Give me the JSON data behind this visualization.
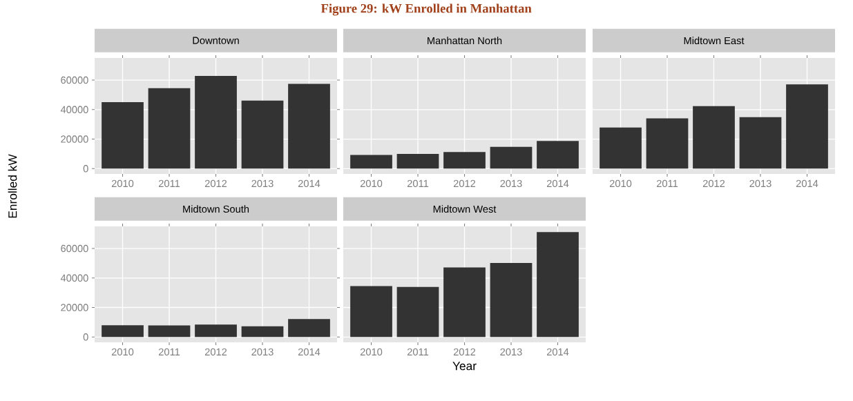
{
  "chart_data": [
    {
      "type": "bar",
      "title": "Downtown",
      "categories": [
        "2010",
        "2011",
        "2012",
        "2013",
        "2014"
      ],
      "values": [
        45000,
        54500,
        62800,
        46100,
        57400
      ],
      "color": "#333333",
      "ylim": [
        -3600,
        75000
      ],
      "yticks": [
        0,
        20000,
        40000,
        60000
      ],
      "grid": true,
      "annotations": [
        "Figure 29: kW Enrolled in Manhattan"
      ]
    },
    {
      "type": "bar",
      "title": "Manhattan North",
      "categories": [
        "2010",
        "2011",
        "2012",
        "2013",
        "2014"
      ],
      "values": [
        9300,
        10000,
        11300,
        14700,
        18700
      ],
      "color": "#333333",
      "ylim": [
        -3600,
        75000
      ],
      "yticks": [
        0,
        20000,
        40000,
        60000
      ],
      "grid": true,
      "tick_labels": "x"
    },
    {
      "type": "bar",
      "title": "Midtown East",
      "categories": [
        "2010",
        "2011",
        "2012",
        "2013",
        "2014"
      ],
      "values": [
        27800,
        34000,
        42400,
        34900,
        57100
      ],
      "color": "#333333",
      "ylim": [
        -3600,
        75000
      ],
      "yticks": [
        0,
        20000,
        40000,
        60000
      ],
      "grid": true,
      "tick_labels": "x"
    },
    {
      "type": "bar",
      "title": "Midtown South",
      "ylabel": "Enrolled kW",
      "categories": [
        "2010",
        "2011",
        "2012",
        "2013",
        "2014"
      ],
      "values": [
        8000,
        7800,
        8400,
        7300,
        12200
      ],
      "color": "#333333",
      "ylim": [
        -3600,
        75000
      ],
      "yticks": [
        0,
        20000,
        40000,
        60000
      ],
      "grid": true
    },
    {
      "type": "bar",
      "title": "Midtown West",
      "xlabel": "Year",
      "categories": [
        "2010",
        "2011",
        "2012",
        "2013",
        "2014"
      ],
      "values": [
        34500,
        33900,
        47200,
        50200,
        71100
      ],
      "color": "#333333",
      "ylim": [
        -3600,
        75000
      ],
      "yticks": [
        0,
        20000,
        40000,
        60000
      ],
      "grid": true,
      "tick_labels": "x"
    }
  ]
}
